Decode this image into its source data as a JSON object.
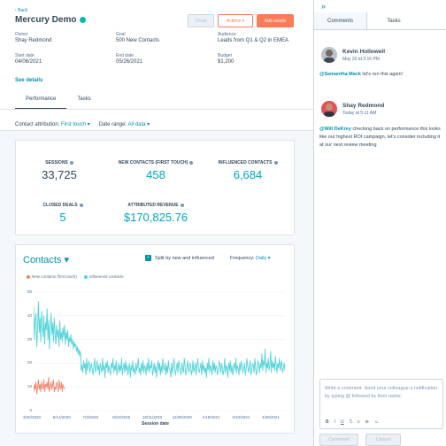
{
  "header": {
    "back_label": "Back",
    "title": "Mercury Demo",
    "clone_label": "Clone",
    "actions_label": "Actions ▾",
    "add_assets_label": "Add assets"
  },
  "fields": {
    "owner_label": "Owner",
    "owner": "Shay Redmond",
    "goal_label": "Goal",
    "goal": "500 New Contacts",
    "audience_label": "Audience",
    "audience": "Leads from Q1 & Q2 in EMEA",
    "start_label": "Start date",
    "start": "04/06/2021",
    "end_label": "End date",
    "end": "05/26/2021",
    "budget_label": "Budget",
    "budget": "$1,200",
    "see_details": "See details"
  },
  "tabs": [
    {
      "label": "Performance"
    },
    {
      "label": "Tasks"
    }
  ],
  "filters": {
    "attribution_label": "Contact attribution:",
    "attribution_value": "First touch ▾",
    "range_label": "Date range:",
    "range_value": "All data ▾"
  },
  "metrics": [
    {
      "label": "SESSIONS",
      "value": "33,725"
    },
    {
      "label": "NEW CONTACTS (FIRST TOUCH)",
      "value": "458"
    },
    {
      "label": "INFLUENCED CONTACTS",
      "value": "6,684"
    },
    {
      "label": "CLOSED DEALS",
      "value": "5"
    },
    {
      "label": "ATTRIBUTED REVENUE",
      "value": "$170,825.76"
    }
  ],
  "contacts": {
    "title": "Contacts ▾",
    "split_label": "Split by new and influenced",
    "frequency_label": "Frequency:",
    "frequency_value": "Daily ▾"
  },
  "chart_data": {
    "type": "line",
    "title": "",
    "xlabel": "Session date",
    "ylabel": "",
    "ylim": [
      0,
      50
    ],
    "yticks": [
      "0",
      "10",
      "20",
      "30",
      "40",
      "50"
    ],
    "xticks": [
      "3/25/2020",
      "5/14/2020",
      "7/3/2020",
      "8/22/2020",
      "10/11/2020",
      "11/30/2020",
      "1/19/2021",
      "3/10/2021",
      "4/29/2021"
    ],
    "legend_placement": "top-left",
    "series": [
      {
        "name": "New contacts (first touch)",
        "color": "#f2826a",
        "values": [
          8,
          11,
          9,
          12,
          7,
          10,
          13,
          9,
          11,
          8,
          12,
          10,
          9,
          13,
          8,
          11,
          10,
          12,
          9,
          14,
          8,
          10,
          12,
          9,
          11,
          13,
          8,
          10,
          9,
          12,
          11,
          8,
          13,
          10,
          9,
          12,
          8,
          11,
          10,
          9
        ]
      },
      {
        "name": "Influenced contacts",
        "color": "#51d3d9",
        "values": [
          44,
          30,
          38,
          41,
          27,
          35,
          46,
          33,
          39,
          29,
          42,
          36,
          31,
          40,
          28,
          37,
          34,
          43,
          30,
          38,
          26,
          35,
          41,
          32,
          37,
          29,
          39,
          33,
          28,
          36,
          31,
          34,
          27,
          38,
          30,
          33,
          29,
          35,
          31,
          36,
          28,
          33,
          30,
          34,
          27,
          31,
          29,
          32,
          28,
          30,
          26,
          29,
          27,
          28,
          25,
          27,
          24,
          26,
          23,
          25,
          17,
          19,
          16,
          21,
          18,
          20,
          15,
          22,
          17,
          19,
          21,
          16,
          18,
          20,
          17,
          15,
          19,
          22,
          16,
          18,
          21,
          17,
          19,
          15,
          20,
          18,
          16,
          22,
          17,
          19,
          14,
          20,
          18,
          21,
          16,
          19,
          17,
          15,
          20,
          18,
          22,
          16,
          19,
          17,
          21,
          15,
          18,
          20,
          16,
          19,
          17,
          22,
          15,
          18,
          20,
          16,
          21,
          17,
          19,
          15,
          18,
          20,
          14,
          19,
          17,
          21,
          16,
          18,
          15,
          20,
          17,
          19,
          22,
          16,
          18,
          15,
          20,
          17,
          21,
          16,
          19,
          18,
          15,
          20,
          17,
          22,
          16,
          19,
          18,
          21,
          15,
          17,
          20,
          16,
          19,
          14,
          18,
          21,
          17,
          20,
          15,
          19,
          16,
          22,
          18,
          17,
          20,
          15,
          19,
          16,
          21,
          18,
          17,
          14,
          20,
          16,
          19,
          22,
          17,
          15,
          18,
          20,
          16,
          21,
          19,
          17,
          15,
          20,
          18,
          16,
          22,
          19,
          15,
          17,
          21,
          18,
          16,
          20,
          19,
          15,
          17,
          21,
          16,
          18,
          20,
          15,
          19,
          22,
          17,
          16,
          18,
          20,
          15,
          21,
          17,
          19,
          16,
          18,
          14,
          20,
          17,
          22,
          16,
          19,
          18,
          15,
          21,
          17,
          20,
          16,
          19,
          18,
          15,
          17,
          21,
          19,
          16,
          20,
          18,
          15,
          17,
          22,
          16,
          19,
          18,
          14,
          20,
          17,
          21,
          16,
          19,
          15,
          18,
          20,
          17,
          22,
          16,
          19,
          18,
          15,
          20,
          17,
          21,
          19,
          16,
          18,
          20,
          15,
          17,
          22,
          19,
          16,
          18,
          21,
          15,
          17,
          20,
          19,
          16,
          22,
          18,
          15,
          17,
          21,
          19,
          16,
          20,
          18,
          24,
          17,
          21,
          19,
          26,
          16,
          20,
          18,
          22,
          17,
          19,
          25,
          16,
          21,
          18,
          20,
          17,
          23,
          19,
          16,
          20,
          18,
          22,
          17,
          19,
          21,
          16,
          18,
          20,
          17
        ]
      }
    ]
  },
  "sidebar": {
    "expand_icon": "»",
    "tabs": [
      {
        "label": "Comments"
      },
      {
        "label": "Tasks"
      }
    ],
    "comments": [
      {
        "author": "Kevin Hollowell",
        "time": "May 20 at 2:16 PM",
        "mention": "@Samantha Mack",
        "text": " let's run this again!"
      },
      {
        "author": "Shay Redmond",
        "time": "Today at 5:11 AM",
        "mention": "@Will DeKrey",
        "text": " checking back on performance this looks like our highest ROI campaign, let's consider including it at our next review meeting"
      }
    ],
    "composer_placeholder": "Write a comment. Send your colleague a notification by typing @ followed by their name.",
    "format_icons": [
      "B",
      "I",
      "U",
      "T̶",
      "≡",
      "⊕",
      "☺"
    ],
    "comment_button": "Comment",
    "cancel_button": "Cancel"
  }
}
